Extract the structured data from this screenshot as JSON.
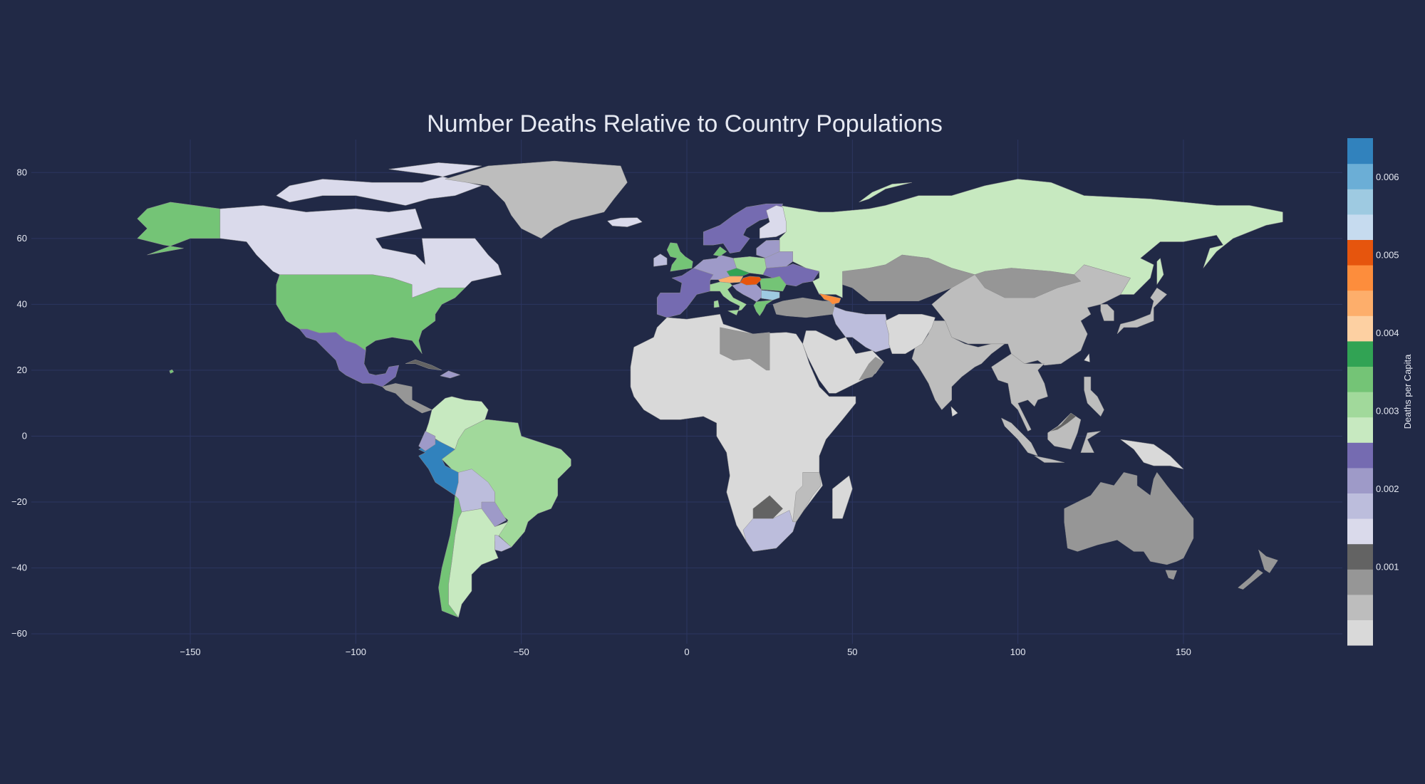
{
  "chart_data": {
    "type": "choropleth",
    "title": "Number Deaths Relative to Country Populations",
    "colorbar_title": "Deaths per Capita",
    "colorbar_ticks": [
      "0.006",
      "0.005",
      "0.004",
      "0.003",
      "0.002",
      "0.001"
    ],
    "colorbar_tick_values": [
      0.006,
      0.005,
      0.004,
      0.003,
      0.002,
      0.001
    ],
    "colorbar_range": [
      0,
      0.0065
    ],
    "x_ticks": [
      "−150",
      "−100",
      "−50",
      "0",
      "50",
      "100",
      "150"
    ],
    "x_tick_values": [
      -150,
      -100,
      -50,
      0,
      50,
      100,
      150
    ],
    "y_ticks": [
      "80",
      "60",
      "40",
      "20",
      "0",
      "−20",
      "−40",
      "−60"
    ],
    "y_tick_values": [
      80,
      60,
      40,
      20,
      0,
      -20,
      -40,
      -60
    ],
    "xlim": [
      -198,
      198
    ],
    "ylim": [
      -63,
      90
    ],
    "grid": true,
    "legend_position": "right",
    "colorscale": [
      "#d9d9d9",
      "#bdbdbd",
      "#969696",
      "#636363",
      "#dadaeb",
      "#bcbddc",
      "#9e9ac8",
      "#756bb1",
      "#c7e9c0",
      "#a1d99b",
      "#74c476",
      "#31a354",
      "#fdd0a2",
      "#fdae6b",
      "#fd8d3c",
      "#e6550d",
      "#c6dbef",
      "#9ecae1",
      "#6baed6",
      "#3182bd"
    ],
    "countries": [
      {
        "region": "Canada",
        "deaths_per_capita": 0.00155,
        "color": "#dadaeb"
      },
      {
        "region": "United States",
        "deaths_per_capita": 0.0029,
        "color": "#74c476"
      },
      {
        "region": "Alaska",
        "deaths_per_capita": 0.0029,
        "color": "#74c476"
      },
      {
        "region": "Mexico",
        "deaths_per_capita": 0.0024,
        "color": "#756bb1"
      },
      {
        "region": "Greenland",
        "deaths_per_capita": 0.0004,
        "color": "#bdbdbd"
      },
      {
        "region": "Peru",
        "deaths_per_capita": 0.0064,
        "color": "#3182bd"
      },
      {
        "region": "Brazil",
        "deaths_per_capita": 0.0031,
        "color": "#a1d99b"
      },
      {
        "region": "Colombia / Venezuela",
        "deaths_per_capita": 0.0034,
        "color": "#c7e9c0"
      },
      {
        "region": "Bolivia",
        "deaths_per_capita": 0.0019,
        "color": "#bcbddc"
      },
      {
        "region": "Argentina",
        "deaths_per_capita": 0.0028,
        "color": "#c7e9c0"
      },
      {
        "region": "Chile",
        "deaths_per_capita": 0.0029,
        "color": "#74c476"
      },
      {
        "region": "Russia",
        "deaths_per_capita": 0.0028,
        "color": "#c7e9c0"
      },
      {
        "region": "Kazakhstan / Mongolia",
        "deaths_per_capita": 0.0006,
        "color": "#969696"
      },
      {
        "region": "China",
        "deaths_per_capita": 0.0004,
        "color": "#bdbdbd"
      },
      {
        "region": "India",
        "deaths_per_capita": 0.0004,
        "color": "#bdbdbd"
      },
      {
        "region": "Iran",
        "deaths_per_capita": 0.0017,
        "color": "#bcbddc"
      },
      {
        "region": "Africa",
        "deaths_per_capita": 0.0002,
        "color": "#d9d9d9"
      },
      {
        "region": "South Africa",
        "deaths_per_capita": 0.0017,
        "color": "#bcbddc"
      },
      {
        "region": "Libya",
        "deaths_per_capita": 0.0007,
        "color": "#969696"
      },
      {
        "region": "Australia",
        "deaths_per_capita": 0.0007,
        "color": "#969696"
      },
      {
        "region": "France / Spain",
        "deaths_per_capita": 0.0023,
        "color": "#756bb1"
      },
      {
        "region": "United Kingdom",
        "deaths_per_capita": 0.0029,
        "color": "#74c476"
      },
      {
        "region": "Sweden / Norway",
        "deaths_per_capita": 0.0024,
        "color": "#756bb1"
      },
      {
        "region": "Poland",
        "deaths_per_capita": 0.0031,
        "color": "#a1d99b"
      },
      {
        "region": "Ukraine",
        "deaths_per_capita": 0.0024,
        "color": "#756bb1"
      },
      {
        "region": "Hungary",
        "deaths_per_capita": 0.0049,
        "color": "#e6550d"
      },
      {
        "region": "Georgia",
        "deaths_per_capita": 0.0044,
        "color": "#fd8d3c"
      }
    ]
  }
}
